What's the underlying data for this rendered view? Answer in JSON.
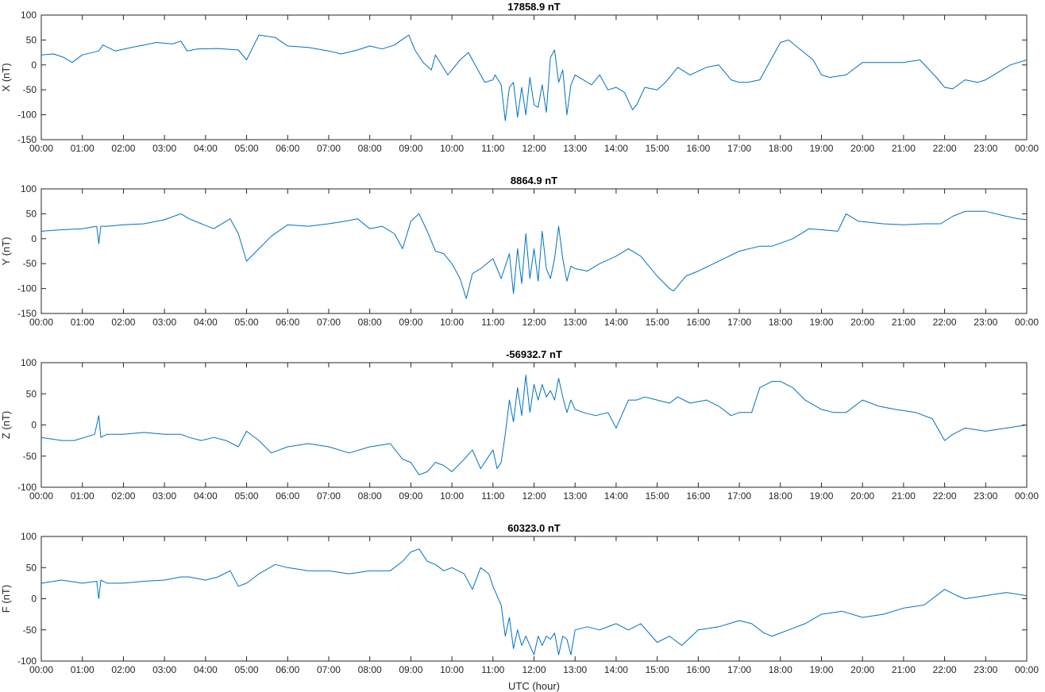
{
  "chart_data": [
    {
      "type": "line",
      "title": "17858.9 nT",
      "ylabel": "X (nT)",
      "xlabel": "",
      "xlim": [
        0,
        24
      ],
      "ylim": [
        -150,
        100
      ],
      "yticks": [
        100,
        50,
        0,
        -50,
        -100,
        -150
      ],
      "xtick_labels": [
        "00:00",
        "01:00",
        "02:00",
        "03:00",
        "04:00",
        "05:00",
        "06:00",
        "07:00",
        "08:00",
        "09:00",
        "10:00",
        "11:00",
        "12:00",
        "13:00",
        "14:00",
        "15:00",
        "16:00",
        "17:00",
        "18:00",
        "19:00",
        "20:00",
        "21:00",
        "22:00",
        "23:00",
        "00:00"
      ],
      "grid": false,
      "series": [
        {
          "color": "#0072bd",
          "x": [
            0,
            0.3,
            0.55,
            0.75,
            1.0,
            1.4,
            1.5,
            1.8,
            2.2,
            2.5,
            2.8,
            3.2,
            3.4,
            3.55,
            3.8,
            4.3,
            4.8,
            5.0,
            5.3,
            5.7,
            6.0,
            6.5,
            7.0,
            7.3,
            7.7,
            8.0,
            8.3,
            8.6,
            8.95,
            9.1,
            9.3,
            9.5,
            9.6,
            9.9,
            10.2,
            10.4,
            10.6,
            10.8,
            11.0,
            11.05,
            11.2,
            11.3,
            11.4,
            11.5,
            11.6,
            11.7,
            11.8,
            11.9,
            12.0,
            12.1,
            12.2,
            12.3,
            12.4,
            12.5,
            12.6,
            12.7,
            12.8,
            12.9,
            13.0,
            13.2,
            13.4,
            13.6,
            13.8,
            14.0,
            14.2,
            14.4,
            14.5,
            14.7,
            15.0,
            15.2,
            15.5,
            15.8,
            16.2,
            16.5,
            16.8,
            17.0,
            17.2,
            17.5,
            18.0,
            18.2,
            18.5,
            18.8,
            19.0,
            19.2,
            19.6,
            20.0,
            20.5,
            21.0,
            21.4,
            21.8,
            22.0,
            22.2,
            22.5,
            22.8,
            23.0,
            23.3,
            23.6,
            24.0
          ],
          "y": [
            20,
            22,
            15,
            5,
            20,
            28,
            40,
            28,
            35,
            40,
            45,
            42,
            48,
            28,
            32,
            33,
            30,
            10,
            60,
            55,
            38,
            35,
            28,
            22,
            30,
            38,
            32,
            40,
            60,
            30,
            5,
            -10,
            20,
            -20,
            10,
            25,
            -5,
            -35,
            -30,
            -20,
            -40,
            -112,
            -45,
            -35,
            -105,
            -45,
            -100,
            -25,
            -80,
            -85,
            -40,
            -95,
            15,
            30,
            -35,
            -10,
            -100,
            -40,
            -20,
            -30,
            -40,
            -20,
            -50,
            -45,
            -55,
            -90,
            -80,
            -45,
            -50,
            -35,
            -5,
            -20,
            -5,
            0,
            -30,
            -35,
            -35,
            -30,
            45,
            50,
            30,
            10,
            -20,
            -25,
            -20,
            5,
            5,
            5,
            10,
            -25,
            -45,
            -48,
            -30,
            -35,
            -30,
            -15,
            0,
            10
          ]
        }
      ]
    },
    {
      "type": "line",
      "title": "8864.9 nT",
      "ylabel": "Y (nT)",
      "xlabel": "",
      "xlim": [
        0,
        24
      ],
      "ylim": [
        -150,
        100
      ],
      "yticks": [
        100,
        50,
        0,
        -50,
        -100,
        -150
      ],
      "xtick_labels": [
        "00:00",
        "01:00",
        "02:00",
        "03:00",
        "04:00",
        "05:00",
        "06:00",
        "07:00",
        "08:00",
        "09:00",
        "10:00",
        "11:00",
        "12:00",
        "13:00",
        "14:00",
        "15:00",
        "16:00",
        "17:00",
        "18:00",
        "19:00",
        "20:00",
        "21:00",
        "22:00",
        "23:00",
        "00:00"
      ],
      "grid": false,
      "series": [
        {
          "color": "#0072bd",
          "x": [
            0,
            0.5,
            1.0,
            1.35,
            1.4,
            1.45,
            1.6,
            2.0,
            2.5,
            3.0,
            3.4,
            3.6,
            3.9,
            4.2,
            4.6,
            4.8,
            5.0,
            5.3,
            5.6,
            6.0,
            6.5,
            7.0,
            7.4,
            7.7,
            8.0,
            8.3,
            8.6,
            8.8,
            9.0,
            9.2,
            9.4,
            9.6,
            9.8,
            10.0,
            10.2,
            10.35,
            10.5,
            10.7,
            11.0,
            11.2,
            11.4,
            11.5,
            11.6,
            11.7,
            11.8,
            11.9,
            12.0,
            12.1,
            12.2,
            12.3,
            12.4,
            12.5,
            12.6,
            12.7,
            12.8,
            12.9,
            13.0,
            13.3,
            13.6,
            14.0,
            14.3,
            14.6,
            15.0,
            15.3,
            15.4,
            15.7,
            16.0,
            16.5,
            17.0,
            17.5,
            17.8,
            18.3,
            18.7,
            19.0,
            19.4,
            19.6,
            19.9,
            20.5,
            21.0,
            21.5,
            21.9,
            22.2,
            22.5,
            23.0,
            23.5,
            23.8,
            24.0
          ],
          "y": [
            15,
            18,
            20,
            25,
            -10,
            25,
            25,
            28,
            30,
            38,
            50,
            40,
            30,
            20,
            40,
            10,
            -45,
            -20,
            5,
            28,
            25,
            30,
            35,
            40,
            20,
            25,
            10,
            -20,
            35,
            50,
            15,
            -25,
            -30,
            -50,
            -80,
            -120,
            -70,
            -60,
            -40,
            -80,
            -30,
            -110,
            -20,
            -90,
            10,
            -80,
            -20,
            -85,
            15,
            -60,
            -80,
            -40,
            25,
            -40,
            -85,
            -55,
            -60,
            -65,
            -50,
            -35,
            -20,
            -35,
            -75,
            -100,
            -105,
            -75,
            -65,
            -45,
            -25,
            -15,
            -15,
            0,
            20,
            18,
            15,
            50,
            35,
            30,
            28,
            30,
            30,
            45,
            55,
            55,
            45,
            40,
            38
          ]
        }
      ]
    },
    {
      "type": "line",
      "title": "-56932.7 nT",
      "ylabel": "Z (nT)",
      "xlabel": "",
      "xlim": [
        0,
        24
      ],
      "ylim": [
        -100,
        100
      ],
      "yticks": [
        100,
        50,
        0,
        -50,
        -100
      ],
      "xtick_labels": [
        "00:00",
        "01:00",
        "02:00",
        "03:00",
        "04:00",
        "05:00",
        "06:00",
        "07:00",
        "08:00",
        "09:00",
        "10:00",
        "11:00",
        "12:00",
        "13:00",
        "14:00",
        "15:00",
        "16:00",
        "17:00",
        "18:00",
        "19:00",
        "20:00",
        "21:00",
        "22:00",
        "23:00",
        "00:00"
      ],
      "grid": false,
      "series": [
        {
          "color": "#0072bd",
          "x": [
            0,
            0.5,
            0.8,
            1.3,
            1.4,
            1.45,
            1.6,
            2.0,
            2.5,
            3.0,
            3.4,
            3.6,
            3.9,
            4.2,
            4.5,
            4.8,
            5.0,
            5.3,
            5.6,
            6.0,
            6.5,
            7.0,
            7.5,
            8.0,
            8.5,
            8.8,
            9.0,
            9.2,
            9.4,
            9.6,
            9.8,
            10.0,
            10.3,
            10.5,
            10.7,
            10.9,
            11.0,
            11.1,
            11.2,
            11.3,
            11.4,
            11.5,
            11.6,
            11.7,
            11.8,
            11.9,
            12.0,
            12.1,
            12.2,
            12.3,
            12.4,
            12.5,
            12.6,
            12.7,
            12.8,
            12.9,
            13.0,
            13.2,
            13.5,
            13.8,
            14.0,
            14.3,
            14.5,
            14.7,
            15.0,
            15.3,
            15.5,
            15.8,
            16.2,
            16.5,
            16.8,
            17.0,
            17.3,
            17.5,
            17.8,
            18.0,
            18.3,
            18.6,
            19.0,
            19.3,
            19.6,
            20.0,
            20.4,
            20.8,
            21.3,
            21.7,
            22.0,
            22.2,
            22.5,
            23.0,
            23.5,
            24.0
          ],
          "y": [
            -20,
            -25,
            -25,
            -15,
            15,
            -20,
            -15,
            -15,
            -12,
            -15,
            -15,
            -20,
            -25,
            -20,
            -25,
            -35,
            -10,
            -25,
            -45,
            -35,
            -30,
            -35,
            -45,
            -35,
            -30,
            -55,
            -60,
            -80,
            -75,
            -60,
            -65,
            -75,
            -55,
            -40,
            -70,
            -50,
            -40,
            -70,
            -60,
            -15,
            40,
            5,
            60,
            15,
            80,
            20,
            65,
            40,
            65,
            45,
            55,
            40,
            75,
            45,
            20,
            40,
            25,
            20,
            15,
            20,
            -5,
            40,
            40,
            45,
            40,
            35,
            45,
            35,
            40,
            30,
            15,
            20,
            20,
            60,
            70,
            70,
            60,
            40,
            25,
            20,
            20,
            40,
            30,
            25,
            20,
            10,
            -25,
            -15,
            -5,
            -10,
            -5,
            0
          ]
        }
      ]
    },
    {
      "type": "line",
      "title": "60323.0 nT",
      "ylabel": "F (nT)",
      "xlabel": "UTC (hour)",
      "xlim": [
        0,
        24
      ],
      "ylim": [
        -100,
        100
      ],
      "yticks": [
        100,
        50,
        0,
        -50,
        -100
      ],
      "xtick_labels": [
        "00:00",
        "01:00",
        "02:00",
        "03:00",
        "04:00",
        "05:00",
        "06:00",
        "07:00",
        "08:00",
        "09:00",
        "10:00",
        "11:00",
        "12:00",
        "13:00",
        "14:00",
        "15:00",
        "16:00",
        "17:00",
        "18:00",
        "19:00",
        "20:00",
        "21:00",
        "22:00",
        "23:00",
        "00:00"
      ],
      "grid": false,
      "series": [
        {
          "color": "#0072bd",
          "x": [
            0,
            0.5,
            1.0,
            1.35,
            1.4,
            1.45,
            1.6,
            2.0,
            2.5,
            3.0,
            3.4,
            3.6,
            4.0,
            4.3,
            4.6,
            4.8,
            5.0,
            5.3,
            5.7,
            6.0,
            6.5,
            7.0,
            7.5,
            8.0,
            8.5,
            8.8,
            9.0,
            9.2,
            9.4,
            9.6,
            9.8,
            10.0,
            10.3,
            10.5,
            10.7,
            10.9,
            11.0,
            11.2,
            11.3,
            11.4,
            11.5,
            11.6,
            11.7,
            11.8,
            11.9,
            12.0,
            12.1,
            12.2,
            12.3,
            12.4,
            12.5,
            12.6,
            12.7,
            12.8,
            12.9,
            13.0,
            13.3,
            13.6,
            14.0,
            14.3,
            14.6,
            15.0,
            15.3,
            15.6,
            16.0,
            16.5,
            17.0,
            17.3,
            17.6,
            17.8,
            18.2,
            18.6,
            19.0,
            19.5,
            20.0,
            20.5,
            21.0,
            21.5,
            22.0,
            22.3,
            22.5,
            23.0,
            23.5,
            24.0
          ],
          "y": [
            25,
            30,
            25,
            28,
            0,
            30,
            25,
            25,
            28,
            30,
            35,
            35,
            30,
            35,
            45,
            20,
            25,
            40,
            55,
            50,
            45,
            45,
            40,
            45,
            45,
            60,
            75,
            80,
            60,
            55,
            45,
            50,
            40,
            15,
            50,
            40,
            20,
            -10,
            -60,
            -30,
            -80,
            -50,
            -75,
            -60,
            -75,
            -90,
            -60,
            -75,
            -60,
            -65,
            -55,
            -90,
            -60,
            -65,
            -90,
            -50,
            -45,
            -50,
            -40,
            -50,
            -40,
            -70,
            -60,
            -75,
            -50,
            -45,
            -35,
            -40,
            -55,
            -60,
            -50,
            -40,
            -25,
            -20,
            -30,
            -25,
            -15,
            -10,
            15,
            5,
            0,
            5,
            10,
            5
          ]
        }
      ]
    }
  ]
}
